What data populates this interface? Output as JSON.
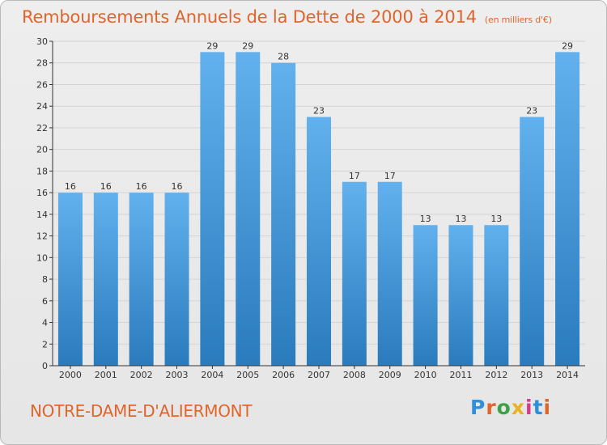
{
  "header": {
    "title": "Remboursements Annuels de la Dette de 2000 à 2014",
    "unit": "(en milliers d'€)"
  },
  "footer": {
    "town": "NOTRE-DAME-D'ALIERMONT",
    "logo": "Proxiti",
    "logo_colors": [
      "#2f8fd8",
      "#e0652b",
      "#3aa34a",
      "#e8b321",
      "#d83b8c",
      "#2f8fd8",
      "#e0652b"
    ]
  },
  "chart_data": {
    "type": "bar",
    "categories": [
      "2000",
      "2001",
      "2002",
      "2003",
      "2004",
      "2005",
      "2006",
      "2007",
      "2008",
      "2009",
      "2010",
      "2011",
      "2012",
      "2013",
      "2014"
    ],
    "values": [
      16,
      16,
      16,
      16,
      29,
      29,
      28,
      23,
      17,
      17,
      13,
      13,
      13,
      23,
      29
    ],
    "ylim": [
      0,
      30
    ],
    "yticks": [
      0,
      2,
      4,
      6,
      8,
      10,
      12,
      14,
      16,
      18,
      20,
      22,
      24,
      26,
      28,
      30
    ],
    "grid": true,
    "colors": {
      "bar_top": "#62b1ee",
      "bar_bottom": "#2a7bbd",
      "grid": "#d4d4d4",
      "axis": "#333333"
    }
  }
}
